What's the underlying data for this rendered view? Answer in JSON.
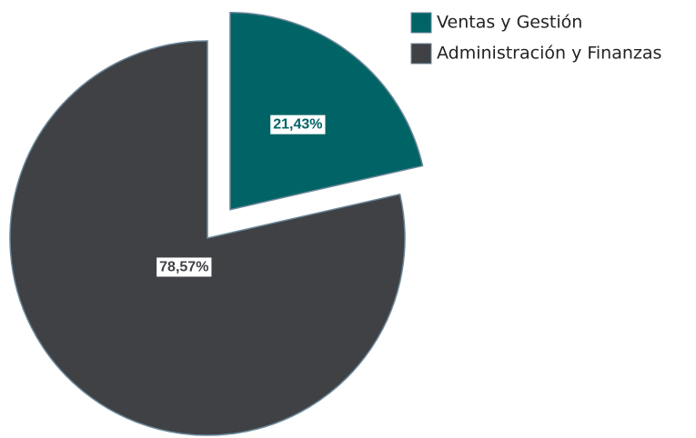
{
  "chart_data": {
    "type": "pie",
    "categories": [
      "Ventas y Gestión",
      "Administración y Finanzas"
    ],
    "values": [
      21.43,
      78.57
    ],
    "value_labels": [
      "21,43%",
      "78,57%"
    ],
    "colors": [
      "#006466",
      "#3f4145"
    ],
    "legend": "top-right"
  }
}
